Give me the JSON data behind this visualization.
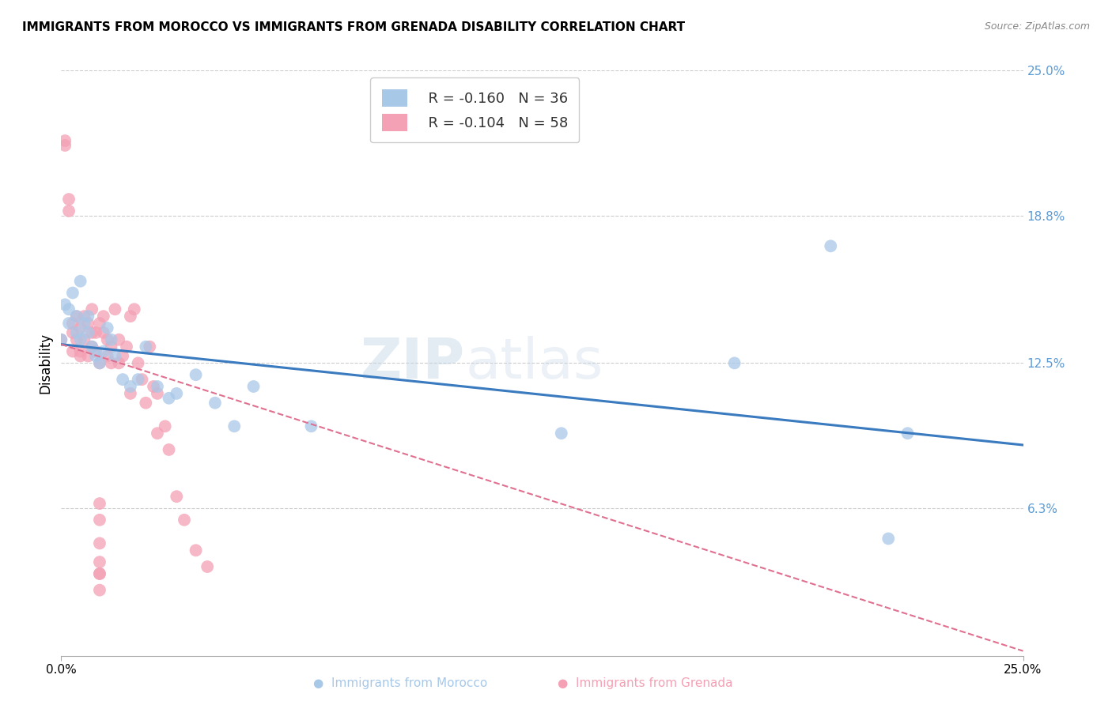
{
  "title": "IMMIGRANTS FROM MOROCCO VS IMMIGRANTS FROM GRENADA DISABILITY CORRELATION CHART",
  "source": "Source: ZipAtlas.com",
  "ylabel": "Disability",
  "right_yticks": [
    "25.0%",
    "18.8%",
    "12.5%",
    "6.3%"
  ],
  "right_ytick_vals": [
    0.25,
    0.188,
    0.125,
    0.063
  ],
  "xlim": [
    0.0,
    0.25
  ],
  "ylim": [
    0.0,
    0.25
  ],
  "morocco_color": "#a8c8e8",
  "grenada_color": "#f4a0b5",
  "morocco_R": -0.16,
  "morocco_N": 36,
  "grenada_R": -0.104,
  "grenada_N": 58,
  "morocco_line_color": "#3a7abf",
  "grenada_line_color": "#e07090",
  "watermark_zip": "ZIP",
  "watermark_atlas": "atlas",
  "background_color": "#ffffff",
  "grid_color": "#cccccc",
  "right_axis_color": "#5b9bd5",
  "morocco_x": [
    0.0,
    0.001,
    0.002,
    0.002,
    0.003,
    0.004,
    0.004,
    0.005,
    0.005,
    0.006,
    0.007,
    0.007,
    0.008,
    0.009,
    0.01,
    0.011,
    0.012,
    0.013,
    0.014,
    0.016,
    0.018,
    0.02,
    0.022,
    0.025,
    0.028,
    0.03,
    0.035,
    0.04,
    0.045,
    0.05,
    0.065,
    0.13,
    0.175,
    0.2,
    0.215,
    0.22
  ],
  "morocco_y": [
    0.135,
    0.15,
    0.148,
    0.142,
    0.155,
    0.145,
    0.138,
    0.16,
    0.135,
    0.142,
    0.138,
    0.145,
    0.132,
    0.128,
    0.125,
    0.13,
    0.14,
    0.135,
    0.128,
    0.118,
    0.115,
    0.118,
    0.132,
    0.115,
    0.11,
    0.112,
    0.12,
    0.108,
    0.098,
    0.115,
    0.098,
    0.095,
    0.125,
    0.175,
    0.05,
    0.095
  ],
  "grenada_x": [
    0.0,
    0.001,
    0.001,
    0.002,
    0.002,
    0.003,
    0.003,
    0.003,
    0.004,
    0.004,
    0.005,
    0.005,
    0.005,
    0.006,
    0.006,
    0.007,
    0.007,
    0.008,
    0.008,
    0.008,
    0.009,
    0.009,
    0.01,
    0.01,
    0.011,
    0.011,
    0.012,
    0.012,
    0.013,
    0.013,
    0.014,
    0.015,
    0.015,
    0.016,
    0.017,
    0.018,
    0.018,
    0.019,
    0.02,
    0.021,
    0.022,
    0.023,
    0.024,
    0.025,
    0.025,
    0.027,
    0.028,
    0.03,
    0.032,
    0.035,
    0.038,
    0.01,
    0.01,
    0.01,
    0.01,
    0.01,
    0.01,
    0.01
  ],
  "grenada_y": [
    0.135,
    0.22,
    0.218,
    0.195,
    0.19,
    0.138,
    0.13,
    0.142,
    0.145,
    0.135,
    0.13,
    0.14,
    0.128,
    0.145,
    0.135,
    0.142,
    0.128,
    0.132,
    0.148,
    0.138,
    0.13,
    0.138,
    0.142,
    0.125,
    0.138,
    0.145,
    0.128,
    0.135,
    0.132,
    0.125,
    0.148,
    0.125,
    0.135,
    0.128,
    0.132,
    0.145,
    0.112,
    0.148,
    0.125,
    0.118,
    0.108,
    0.132,
    0.115,
    0.095,
    0.112,
    0.098,
    0.088,
    0.068,
    0.058,
    0.045,
    0.038,
    0.035,
    0.028,
    0.065,
    0.058,
    0.048,
    0.04,
    0.035
  ]
}
